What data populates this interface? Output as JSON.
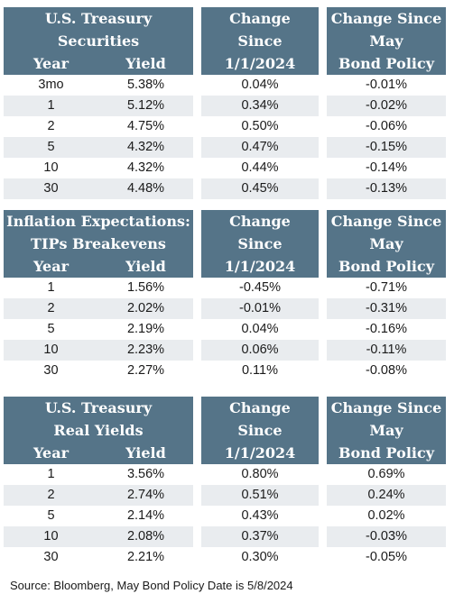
{
  "sections": [
    {
      "title_lines": [
        "U.S. Treasury",
        "Securities"
      ],
      "sub_headers": [
        "Year",
        "Yield"
      ],
      "change_header": [
        "Change",
        "Since",
        "1/1/2024"
      ],
      "policy_header": [
        "Change Since",
        "May",
        "Bond Policy"
      ],
      "rows": [
        {
          "year": "3mo",
          "yield": "5.38%",
          "change": "0.04%",
          "policy": "-0.01%"
        },
        {
          "year": "1",
          "yield": "5.12%",
          "change": "0.34%",
          "policy": "-0.02%"
        },
        {
          "year": "2",
          "yield": "4.75%",
          "change": "0.50%",
          "policy": "-0.06%"
        },
        {
          "year": "5",
          "yield": "4.32%",
          "change": "0.47%",
          "policy": "-0.15%"
        },
        {
          "year": "10",
          "yield": "4.32%",
          "change": "0.44%",
          "policy": "-0.14%"
        },
        {
          "year": "30",
          "yield": "4.48%",
          "change": "0.45%",
          "policy": "-0.13%"
        }
      ]
    },
    {
      "title_lines": [
        "Inflation Expectations:",
        "TIPs Breakevens"
      ],
      "sub_headers": [
        "Year",
        "Yield"
      ],
      "change_header": [
        "Change",
        "Since",
        "1/1/2024"
      ],
      "policy_header": [
        "Change Since",
        "May",
        "Bond Policy"
      ],
      "rows": [
        {
          "year": "1",
          "yield": "1.56%",
          "change": "-0.45%",
          "policy": "-0.71%"
        },
        {
          "year": "2",
          "yield": "2.02%",
          "change": "-0.01%",
          "policy": "-0.31%"
        },
        {
          "year": "5",
          "yield": "2.19%",
          "change": "0.04%",
          "policy": "-0.16%"
        },
        {
          "year": "10",
          "yield": "2.23%",
          "change": "0.06%",
          "policy": "-0.11%"
        },
        {
          "year": "30",
          "yield": "2.27%",
          "change": "0.11%",
          "policy": "-0.08%"
        }
      ]
    },
    {
      "title_lines": [
        "U.S. Treasury",
        "Real Yields"
      ],
      "sub_headers": [
        "Year",
        "Yield"
      ],
      "change_header": [
        "Change",
        "Since",
        "1/1/2024"
      ],
      "policy_header": [
        "Change Since",
        "May",
        "Bond Policy"
      ],
      "rows": [
        {
          "year": "1",
          "yield": "3.56%",
          "change": "0.80%",
          "policy": "0.69%"
        },
        {
          "year": "2",
          "yield": "2.74%",
          "change": "0.51%",
          "policy": "0.24%"
        },
        {
          "year": "5",
          "yield": "2.14%",
          "change": "0.43%",
          "policy": "0.02%"
        },
        {
          "year": "10",
          "yield": "2.08%",
          "change": "0.37%",
          "policy": "-0.03%"
        },
        {
          "year": "30",
          "yield": "2.21%",
          "change": "0.30%",
          "policy": "-0.05%"
        }
      ]
    }
  ],
  "source": "Source: Bloomberg, May Bond Policy Date is 5/8/2024",
  "colors": {
    "header_bg": "#557488",
    "header_text": "#ffffff",
    "row_shade": "#e9ecef"
  }
}
